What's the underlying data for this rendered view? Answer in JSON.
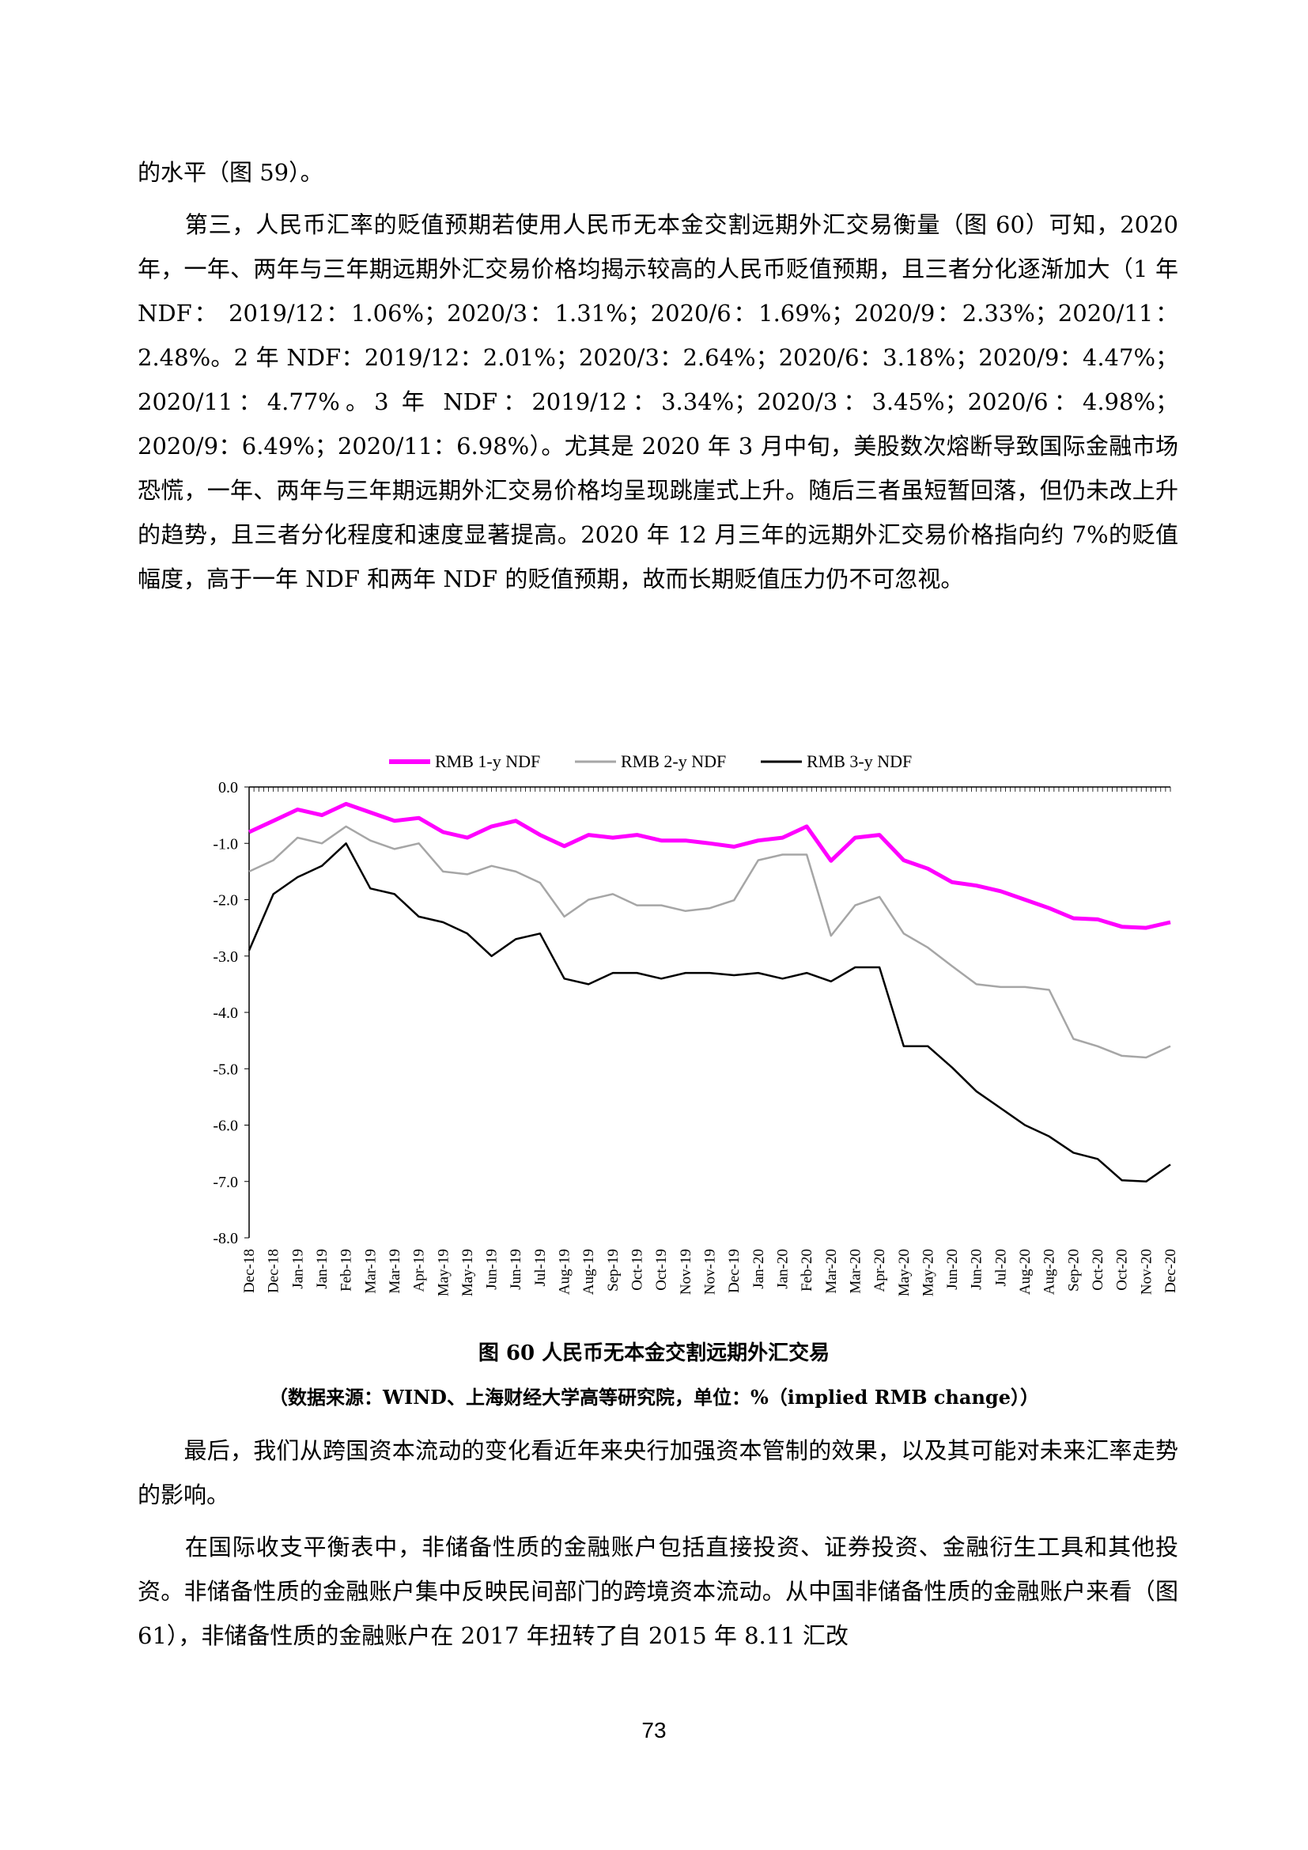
{
  "paragraphs": [
    "的水平（图 59）。",
    "　　第三，人民币汇率的贬值预期若使用人民币无本金交割远期外汇交易衡量（图 60）可知，2020 年，一年、两年与三年期远期外汇交易价格均揭示较高的人民币贬值预期，且三者分化逐渐加大（1 年 NDF： 2019/12：1.06%；2020/3：1.31%；2020/6：1.69%；2020/9：2.33%；2020/11：2.48%。2 年 NDF：2019/12：2.01%；2020/3：2.64%；2020/6：3.18%；2020/9：4.47%；2020/11：4.77%。3 年 NDF：2019/12：3.34%；2020/3：3.45%；2020/6：4.98%；2020/9：6.49%；2020/11：6.98%）。尤其是 2020 年 3 月中旬，美股数次熔断导致国际金融市场恐慌，一年、两年与三年期远期外汇交易价格均呈现跳崖式上升。随后三者虽短暂回落，但仍未改上升的趋势，且三者分化程度和速度显著提高。2020 年 12 月三年的远期外汇交易价格指向约 7%的贬值幅度，高于一年 NDF 和两年 NDF 的贬值预期，故而长期贬值压力仍不可忽视。",
    "　　最后，我们从跨国资本流动的变化看近年来央行加强资本管制的效果，以及其可能对未来汇率走势的影响。",
    "　　在国际收支平衡表中，非储备性质的金融账户包括直接投资、证券投资、金融衍生工具和其他投资。非储备性质的金融账户集中反映民间部门的跨境资本流动。从中国非储备性质的金融账户来看（图 61），非储备性质的金融账户在 2017 年扭转了自 2015 年 8.11 汇改"
  ],
  "figure": {
    "title": "图 60 人民币无本金交割远期外汇交易",
    "source": "（数据来源：WIND、上海财经大学高等研究院，单位：%（implied RMB change））"
  },
  "page_number": "73",
  "chart_data": {
    "type": "line",
    "ylim": [
      -8.0,
      0.0
    ],
    "y_ticks": [
      "0.0",
      "-1.0",
      "-2.0",
      "-3.0",
      "-4.0",
      "-5.0",
      "-6.0",
      "-7.0",
      "-8.0"
    ],
    "categories": [
      "Dec-18",
      "Dec-18",
      "Jan-19",
      "Jan-19",
      "Feb-19",
      "Mar-19",
      "Mar-19",
      "Apr-19",
      "May-19",
      "May-19",
      "Jun-19",
      "Jun-19",
      "Jul-19",
      "Aug-19",
      "Aug-19",
      "Sep-19",
      "Oct-19",
      "Oct-19",
      "Nov-19",
      "Nov-19",
      "Dec-19",
      "Jan-20",
      "Jan-20",
      "Feb-20",
      "Mar-20",
      "Mar-20",
      "Apr-20",
      "May-20",
      "May-20",
      "Jun-20",
      "Jun-20",
      "Jul-20",
      "Aug-20",
      "Aug-20",
      "Sep-20",
      "Oct-20",
      "Oct-20",
      "Nov-20",
      "Dec-20"
    ],
    "legend_position": "top",
    "grid": false,
    "series": [
      {
        "name": "RMB 1-y NDF",
        "color": "#ff00ff",
        "values": [
          -0.8,
          -0.6,
          -0.4,
          -0.5,
          -0.3,
          -0.45,
          -0.6,
          -0.55,
          -0.8,
          -0.9,
          -0.7,
          -0.6,
          -0.85,
          -1.05,
          -0.85,
          -0.9,
          -0.85,
          -0.95,
          -0.95,
          -1.0,
          -1.06,
          -0.95,
          -0.9,
          -0.7,
          -1.31,
          -0.9,
          -0.85,
          -1.3,
          -1.45,
          -1.69,
          -1.75,
          -1.85,
          -2.0,
          -2.15,
          -2.33,
          -2.35,
          -2.48,
          -2.5,
          -2.4
        ]
      },
      {
        "name": "RMB 2-y NDF",
        "color": "#a6a6a6",
        "values": [
          -1.5,
          -1.3,
          -0.9,
          -1.0,
          -0.7,
          -0.95,
          -1.1,
          -1.0,
          -1.5,
          -1.55,
          -1.4,
          -1.5,
          -1.7,
          -2.3,
          -2.0,
          -1.9,
          -2.1,
          -2.1,
          -2.2,
          -2.15,
          -2.01,
          -1.3,
          -1.2,
          -1.2,
          -2.64,
          -2.1,
          -1.95,
          -2.6,
          -2.85,
          -3.18,
          -3.5,
          -3.55,
          -3.55,
          -3.6,
          -4.47,
          -4.6,
          -4.77,
          -4.8,
          -4.6
        ]
      },
      {
        "name": "RMB 3-y NDF",
        "color": "#000000",
        "values": [
          -2.9,
          -1.9,
          -1.6,
          -1.4,
          -1.0,
          -1.8,
          -1.9,
          -2.3,
          -2.4,
          -2.6,
          -3.0,
          -2.7,
          -2.6,
          -3.4,
          -3.5,
          -3.3,
          -3.3,
          -3.4,
          -3.3,
          -3.3,
          -3.34,
          -3.3,
          -3.4,
          -3.3,
          -3.45,
          -3.2,
          -3.2,
          -4.6,
          -4.6,
          -4.98,
          -5.4,
          -5.7,
          -6.0,
          -6.2,
          -6.49,
          -6.6,
          -6.98,
          -7.0,
          -6.7
        ]
      }
    ]
  }
}
